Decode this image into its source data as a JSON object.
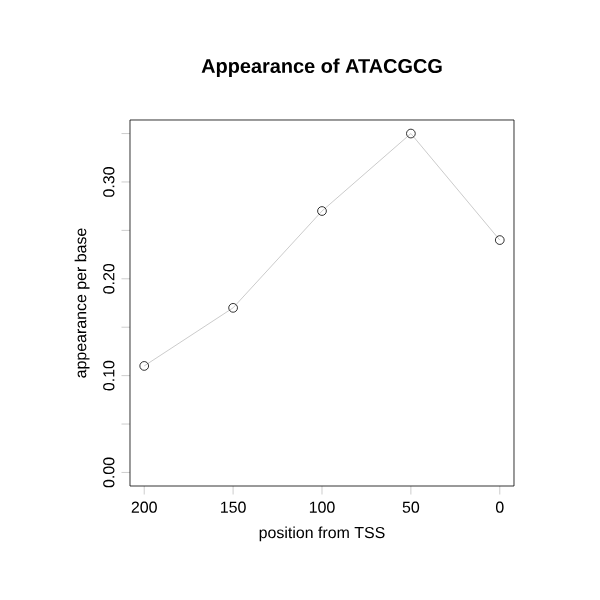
{
  "chart_data": {
    "type": "line",
    "title": "Appearance of ATACGCG",
    "xlabel": "position from TSS",
    "ylabel": "appearance per base",
    "x": [
      200,
      150,
      100,
      50,
      0
    ],
    "series": [
      {
        "color": "#bebebe",
        "values": [
          0.11,
          0.17,
          0.27,
          0.35,
          0.24
        ]
      }
    ],
    "marker": "circle",
    "line_style": "solid",
    "grid": false,
    "xlim": [
      208,
      -8
    ],
    "xticks": [
      200,
      150,
      100,
      50,
      0
    ],
    "ylim": [
      -0.014,
      0.364
    ],
    "yticks": [
      {
        "value": 0,
        "label": "0.00"
      },
      {
        "value": 0.05,
        "label": null
      },
      {
        "value": 0.1,
        "label": "0.10"
      },
      {
        "value": 0.15,
        "label": null
      },
      {
        "value": 0.2,
        "label": "0.20"
      },
      {
        "value": 0.25,
        "label": null
      },
      {
        "value": 0.3,
        "label": "0.30"
      },
      {
        "value": 0.35,
        "label": null
      }
    ]
  }
}
